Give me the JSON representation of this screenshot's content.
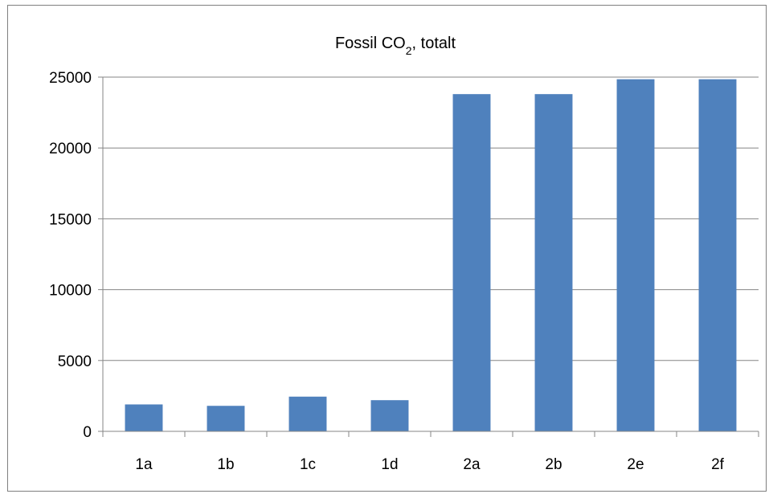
{
  "chart_data": {
    "type": "bar",
    "title": "Fossil CO",
    "title_subscript": "2",
    "title_suffix": ", totalt",
    "xlabel": "",
    "ylabel": "",
    "categories": [
      "1a",
      "1b",
      "1c",
      "1d",
      "2a",
      "2b",
      "2e",
      "2f"
    ],
    "values": [
      1900,
      1800,
      2450,
      2200,
      23800,
      23800,
      24850,
      24850
    ],
    "ylim": [
      0,
      25000
    ],
    "yticks": [
      0,
      5000,
      10000,
      15000,
      20000,
      25000
    ],
    "grid": true,
    "legend": "none",
    "bar_color": "#4f81bd",
    "grid_color": "#868686"
  }
}
